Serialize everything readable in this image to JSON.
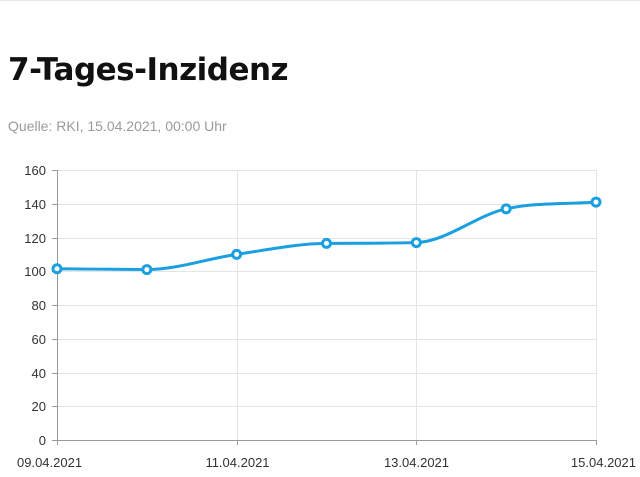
{
  "title": "7-Tages-Inzidenz",
  "source": "Quelle: RKI, 15.04.2021, 00:00 Uhr",
  "colors": {
    "series": "#1a9fe0",
    "grid": "#e4e4e4",
    "axis": "#9a9a9a",
    "title": "#111111",
    "source": "#9a9a9a"
  },
  "chart_data": {
    "type": "line",
    "title": "7-Tages-Inzidenz",
    "subtitle": "Quelle: RKI, 15.04.2021, 00:00 Uhr",
    "xlabel": "",
    "ylabel": "",
    "categories": [
      "09.04.2021",
      "10.04.2021",
      "11.04.2021",
      "12.04.2021",
      "13.04.2021",
      "14.04.2021",
      "15.04.2021"
    ],
    "x_tick_labels": [
      "09.04.2021",
      "",
      "11.04.2021",
      "",
      "13.04.2021",
      "",
      "15.04.2021"
    ],
    "series": [
      {
        "values": [
          101.5,
          101,
          110,
          116.5,
          117,
          137,
          141
        ]
      }
    ],
    "ylim": [
      0,
      160
    ],
    "y_ticks": [
      0,
      20,
      40,
      60,
      80,
      100,
      120,
      140,
      160
    ],
    "grid": true,
    "legend": "none",
    "curve": "smooth"
  }
}
